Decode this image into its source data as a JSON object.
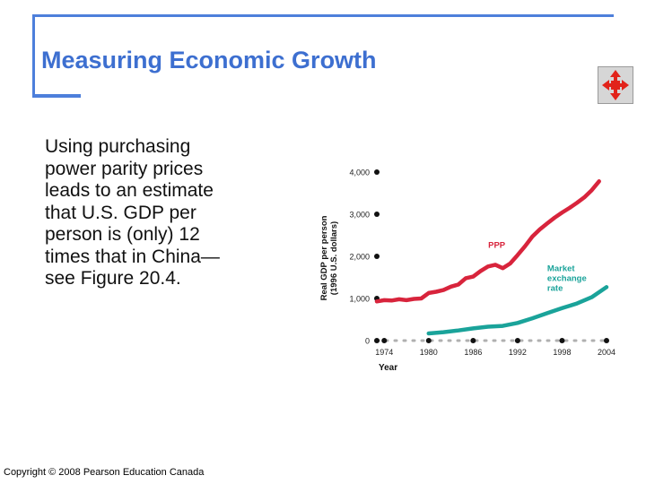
{
  "slide": {
    "title": "Measuring Economic Growth",
    "body_lines": [
      "Using purchasing",
      "power parity prices",
      "leads to an estimate",
      "that U.S. GDP per",
      "person is (only) 12",
      "times that in China—",
      "see Figure 20.4."
    ],
    "copyright": "Copyright © 2008 Pearson Education Canada",
    "nav_icon": "four-way-arrow-icon",
    "accent_color": "#4d7fdb"
  },
  "chart_data": {
    "type": "line",
    "title": "",
    "xlabel": "Year",
    "ylabel": "Real GDP per person (1996 U.S. dollars)",
    "x_ticks": [
      "1974",
      "1980",
      "1986",
      "1992",
      "1998",
      "2004"
    ],
    "y_ticks": [
      "0",
      "1,000",
      "2,000",
      "3,000",
      "4,000"
    ],
    "xlim": [
      1973,
      2004
    ],
    "ylim": [
      0,
      4000
    ],
    "series": [
      {
        "name": "PPP",
        "color": "#d8243c",
        "x": [
          1973,
          1974,
          1975,
          1976,
          1977,
          1978,
          1979,
          1980,
          1981,
          1982,
          1983,
          1984,
          1985,
          1986,
          1987,
          1988,
          1989,
          1990,
          1991,
          1992,
          1993,
          1994,
          1995,
          1996,
          1997,
          1998,
          1999,
          2000,
          2001,
          2002,
          2003
        ],
        "values": [
          930,
          960,
          950,
          980,
          960,
          990,
          1000,
          1130,
          1160,
          1200,
          1280,
          1330,
          1480,
          1520,
          1650,
          1760,
          1800,
          1720,
          1830,
          2030,
          2240,
          2470,
          2640,
          2780,
          2920,
          3040,
          3150,
          3270,
          3400,
          3570,
          3780
        ]
      },
      {
        "name": "Market exchange rate",
        "color": "#1aa39a",
        "x": [
          1980,
          1982,
          1984,
          1986,
          1988,
          1990,
          1992,
          1994,
          1996,
          1998,
          2000,
          2002,
          2004
        ],
        "values": [
          170,
          200,
          240,
          290,
          330,
          350,
          420,
          530,
          650,
          770,
          880,
          1030,
          1270
        ]
      }
    ]
  }
}
